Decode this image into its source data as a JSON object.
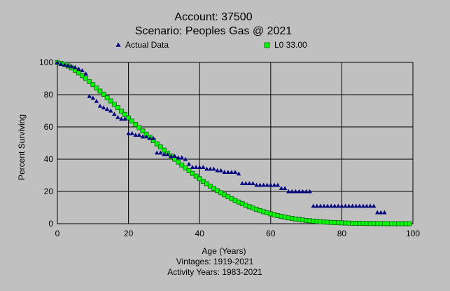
{
  "chart_data": {
    "type": "scatter",
    "title": "Account: 37500",
    "subtitle": "Scenario: Peoples Gas @ 2021",
    "xlabel": "Age (Years)",
    "ylabel": "Percent Surviving",
    "footnotes": [
      "Vintages: 1919-2021",
      "Activity Years: 1983-2021"
    ],
    "xlim": [
      0,
      100
    ],
    "ylim": [
      0,
      100
    ],
    "x_ticks": [
      "0",
      "20",
      "40",
      "60",
      "80",
      "100"
    ],
    "y_ticks": [
      "0",
      "20",
      "40",
      "60",
      "80",
      "100"
    ],
    "grid": true,
    "legend_position": "top",
    "colors": {
      "background": "#c0c0c0",
      "plot_background": "#c0c0c0",
      "grid": "#000000",
      "actual_marker": "#000080",
      "fit_marker_fill": "#00ff00",
      "fit_marker_stroke": "#006400"
    },
    "series": [
      {
        "name": "Actual Data",
        "marker": "triangle",
        "x": [
          0,
          1,
          2,
          3,
          4,
          5,
          6,
          7,
          8,
          9,
          10,
          11,
          12,
          13,
          14,
          15,
          16,
          17,
          18,
          19,
          20,
          21,
          22,
          23,
          24,
          25,
          26,
          27,
          28,
          29,
          30,
          31,
          32,
          33,
          34,
          35,
          36,
          37,
          38,
          39,
          40,
          41,
          42,
          43,
          44,
          45,
          46,
          47,
          48,
          49,
          50,
          51,
          52,
          53,
          54,
          55,
          56,
          57,
          58,
          59,
          60,
          61,
          62,
          63,
          64,
          65,
          66,
          67,
          68,
          69,
          70,
          71,
          72,
          73,
          74,
          75,
          76,
          77,
          78,
          79,
          80,
          81,
          82,
          83,
          84,
          85,
          86,
          87,
          88,
          89,
          90,
          91,
          92
        ],
        "y": [
          100,
          99,
          98.5,
          98,
          97.5,
          97,
          96,
          95,
          93,
          79,
          78,
          76,
          73,
          72,
          71,
          70,
          68,
          66,
          65,
          65,
          56,
          56,
          55,
          55,
          54,
          54,
          53,
          53,
          44,
          44,
          43,
          43,
          42,
          42,
          41,
          41,
          40,
          37,
          35,
          35,
          35,
          35,
          34,
          34,
          34,
          33,
          33,
          32,
          32,
          32,
          32,
          31,
          25,
          25,
          25,
          25,
          24,
          24,
          24,
          24,
          24,
          24,
          24,
          22,
          22,
          20,
          20,
          20,
          20,
          20,
          20,
          20,
          11,
          11,
          11,
          11,
          11,
          11,
          11,
          11,
          11,
          11,
          11,
          11,
          11,
          11,
          11,
          11,
          11,
          11,
          7,
          7,
          7
        ]
      },
      {
        "name": "L0 33.00",
        "marker": "square",
        "x": [
          0,
          1,
          2,
          3,
          4,
          5,
          6,
          7,
          8,
          9,
          10,
          11,
          12,
          13,
          14,
          15,
          16,
          17,
          18,
          19,
          20,
          21,
          22,
          23,
          24,
          25,
          26,
          27,
          28,
          29,
          30,
          31,
          32,
          33,
          34,
          35,
          36,
          37,
          38,
          39,
          40,
          41,
          42,
          43,
          44,
          45,
          46,
          47,
          48,
          49,
          50,
          51,
          52,
          53,
          54,
          55,
          56,
          57,
          58,
          59,
          60,
          61,
          62,
          63,
          64,
          65,
          66,
          67,
          68,
          69,
          70,
          71,
          72,
          73,
          74,
          75,
          76,
          77,
          78,
          79,
          80,
          81,
          82,
          83,
          84,
          85,
          86,
          87,
          88,
          89,
          90,
          91,
          92,
          93,
          94,
          95,
          96,
          97,
          98,
          99
        ],
        "y": [
          100,
          99.4,
          98.8,
          97.8,
          96.6,
          95.1,
          93.5,
          91.8,
          90,
          88.1,
          86.2,
          84.2,
          82.2,
          80.2,
          78.1,
          76.1,
          74,
          71.9,
          69.8,
          67.7,
          65.6,
          63.6,
          61.5,
          59.5,
          57.5,
          55.5,
          53.5,
          51.5,
          49.5,
          47.6,
          45.6,
          43.7,
          41.9,
          40,
          38.2,
          36.4,
          34.6,
          32.9,
          31.2,
          29.5,
          27.9,
          26.3,
          24.8,
          23.3,
          21.9,
          20.5,
          19.2,
          17.9,
          16.7,
          15.5,
          14.4,
          13.4,
          12.4,
          11.4,
          10.5,
          9.7,
          8.9,
          8.1,
          7.4,
          6.7,
          6.1,
          5.5,
          5,
          4.5,
          4.1,
          3.6,
          3.3,
          2.9,
          2.6,
          2.3,
          2,
          1.8,
          1.6,
          1.4,
          1.2,
          1.05,
          0.9,
          0.78,
          0.67,
          0.57,
          0.49,
          0.41,
          0.34,
          0.28,
          0.23,
          0.19,
          0.15,
          0.12,
          0.1,
          0.08,
          0.06,
          0.05,
          0.04,
          0.03,
          0.02,
          0.01,
          0.01,
          0,
          0,
          0
        ]
      }
    ]
  }
}
